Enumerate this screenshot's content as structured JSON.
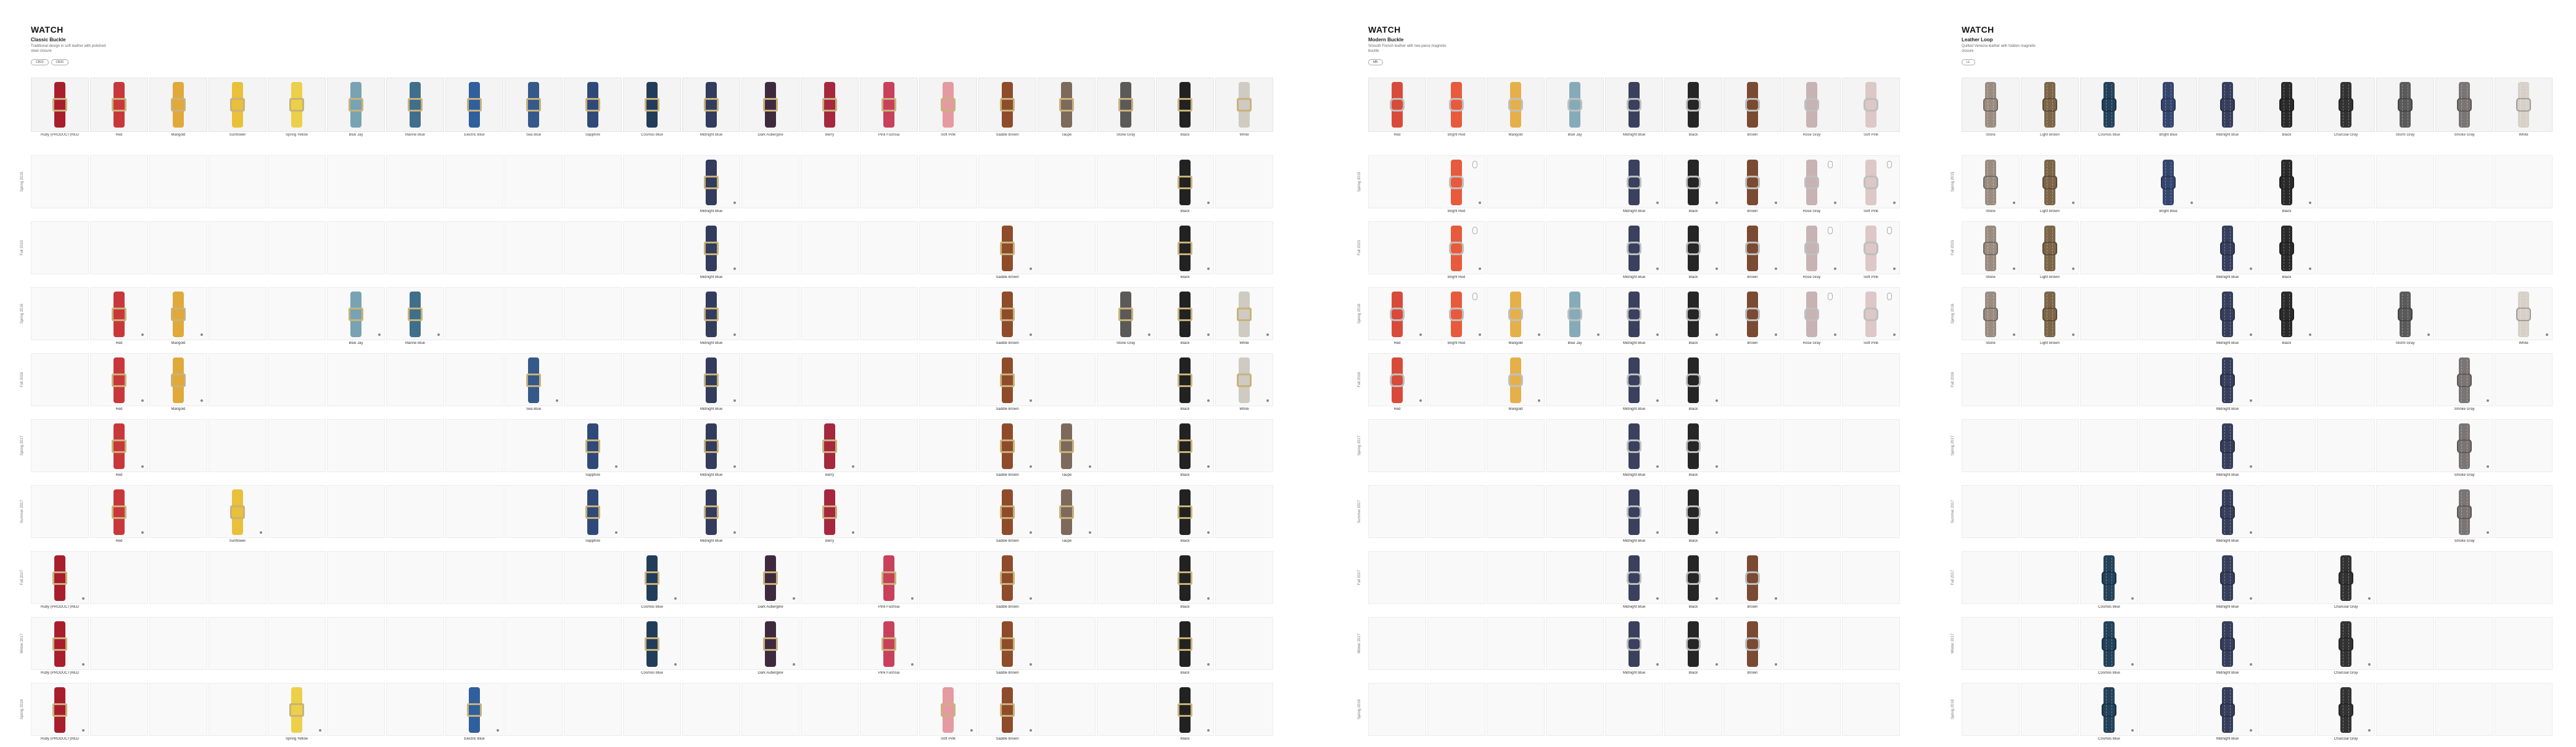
{
  "brand_glyph": "",
  "brand_text": "WATCH",
  "panels": [
    {
      "id": "classic",
      "title": "Classic Buckle",
      "desc": "Traditional design in soft leather with polished steel closure",
      "chips": [
        "CB10",
        "CB20"
      ],
      "colors": [
        {
          "name": "Ruby (PRODUCT)RED",
          "hex": "#a81e2d"
        },
        {
          "name": "Red",
          "hex": "#c8383a"
        },
        {
          "name": "Marigold",
          "hex": "#e0a93a"
        },
        {
          "name": "Sunflower",
          "hex": "#e8c03a"
        },
        {
          "name": "Spring Yellow",
          "hex": "#ecd04a"
        },
        {
          "name": "Blue Jay",
          "hex": "#78a3b3"
        },
        {
          "name": "Marine Blue",
          "hex": "#3f6f8a"
        },
        {
          "name": "Electric Blue",
          "hex": "#2f5f9c"
        },
        {
          "name": "Sea Blue",
          "hex": "#35598a"
        },
        {
          "name": "Sapphire",
          "hex": "#2f4a78"
        },
        {
          "name": "Cosmos Blue",
          "hex": "#223d5a"
        },
        {
          "name": "Midnight Blue",
          "hex": "#323c5c"
        },
        {
          "name": "Dark Aubergine",
          "hex": "#3e2a3e"
        },
        {
          "name": "Berry",
          "hex": "#a5283e"
        },
        {
          "name": "Pink Fuchsia",
          "hex": "#c8405a"
        },
        {
          "name": "Soft Pink",
          "hex": "#e49aa0"
        },
        {
          "name": "Saddle Brown",
          "hex": "#8e4c2a"
        },
        {
          "name": "Taupe",
          "hex": "#7d6a5c"
        },
        {
          "name": "Stone Gray",
          "hex": "#5c5a58"
        },
        {
          "name": "Black",
          "hex": "#222222"
        },
        {
          "name": "White",
          "hex": "#cfcbc2"
        }
      ],
      "rows": [
        {
          "season": "Spring 2015",
          "cells": [
            11,
            19
          ]
        },
        {
          "season": "Fall 2015",
          "cells": [
            11,
            16,
            19
          ]
        },
        {
          "season": "Spring 2016",
          "cells": [
            1,
            2,
            5,
            6,
            11,
            16,
            18,
            19,
            20
          ]
        },
        {
          "season": "Fall 2016",
          "cells": [
            1,
            2,
            8,
            11,
            16,
            19,
            20
          ]
        },
        {
          "season": "Spring 2017",
          "cells": [
            1,
            9,
            11,
            13,
            16,
            17,
            19
          ]
        },
        {
          "season": "Summer 2017",
          "cells": [
            1,
            3,
            9,
            11,
            13,
            16,
            17,
            19
          ]
        },
        {
          "season": "Fall 2017",
          "cells": [
            0,
            10,
            12,
            14,
            16,
            19
          ]
        },
        {
          "season": "Winter 2017",
          "cells": [
            0,
            10,
            12,
            14,
            16,
            19
          ]
        },
        {
          "season": "Spring 2018",
          "cells": [
            0,
            4,
            7,
            15,
            16,
            19
          ]
        }
      ]
    },
    {
      "id": "modern",
      "title": "Modern Buckle",
      "desc": "Smooth French leather with two-piece magnetic buckle",
      "chips": [
        "MB"
      ],
      "colors": [
        {
          "name": "Red",
          "hex": "#d84a3a"
        },
        {
          "name": "Bright Red",
          "hex": "#e85a3c"
        },
        {
          "name": "Marigold",
          "hex": "#e5b04a"
        },
        {
          "name": "Blue Jay",
          "hex": "#86abb8"
        },
        {
          "name": "Midnight Blue",
          "hex": "#3a405e"
        },
        {
          "name": "Black",
          "hex": "#262626"
        },
        {
          "name": "Brown",
          "hex": "#7a4a32"
        },
        {
          "name": "Rose Gray",
          "hex": "#c7b3b3"
        },
        {
          "name": "Soft Pink",
          "hex": "#dcc8c6"
        }
      ],
      "rows": [
        {
          "season": "Spring 2015",
          "cells": [
            1,
            4,
            5,
            6,
            7,
            8
          ]
        },
        {
          "season": "Fall 2015",
          "cells": [
            1,
            4,
            5,
            6,
            7,
            8
          ]
        },
        {
          "season": "Spring 2016",
          "cells": [
            0,
            1,
            2,
            3,
            4,
            5,
            6,
            7,
            8
          ]
        },
        {
          "season": "Fall 2016",
          "cells": [
            0,
            2,
            4,
            5
          ]
        },
        {
          "season": "Spring 2017",
          "cells": [
            4,
            5
          ]
        },
        {
          "season": "Summer 2017",
          "cells": [
            4,
            5
          ]
        },
        {
          "season": "Fall 2017",
          "cells": [
            4,
            5,
            6
          ]
        },
        {
          "season": "Winter 2017",
          "cells": [
            4,
            5,
            6
          ]
        },
        {
          "season": "Spring 2018",
          "cells": []
        }
      ]
    },
    {
      "id": "leather",
      "title": "Leather Loop",
      "desc": "Quilted Venezia leather with hidden magnetic closure",
      "chips": [
        "LL"
      ],
      "colors": [
        {
          "name": "Stone",
          "hex": "#9a8c80"
        },
        {
          "name": "Light Brown",
          "hex": "#7c6548"
        },
        {
          "name": "Cosmos Blue",
          "hex": "#23415a"
        },
        {
          "name": "Bright Blue",
          "hex": "#34466e"
        },
        {
          "name": "Midnight Blue",
          "hex": "#363e5c"
        },
        {
          "name": "Black",
          "hex": "#2a2a2a"
        },
        {
          "name": "Charcoal Gray",
          "hex": "#333333"
        },
        {
          "name": "Storm Gray",
          "hex": "#5a5a5a"
        },
        {
          "name": "Smoke Gray",
          "hex": "#7a7474"
        },
        {
          "name": "White",
          "hex": "#d6d0c8"
        }
      ],
      "rows": [
        {
          "season": "Spring 2015",
          "cells": [
            0,
            1,
            3,
            5
          ]
        },
        {
          "season": "Fall 2015",
          "cells": [
            0,
            1,
            4,
            5
          ]
        },
        {
          "season": "Spring 2016",
          "cells": [
            0,
            1,
            4,
            5,
            7,
            9
          ]
        },
        {
          "season": "Fall 2016",
          "cells": [
            4,
            8
          ]
        },
        {
          "season": "Spring 2017",
          "cells": [
            4,
            8
          ]
        },
        {
          "season": "Summer 2017",
          "cells": [
            4,
            8
          ]
        },
        {
          "season": "Fall 2017",
          "cells": [
            2,
            4,
            6
          ]
        },
        {
          "season": "Winter 2017",
          "cells": [
            2,
            4,
            6
          ]
        },
        {
          "season": "Spring 2018",
          "cells": [
            2,
            4,
            6
          ]
        }
      ]
    }
  ]
}
